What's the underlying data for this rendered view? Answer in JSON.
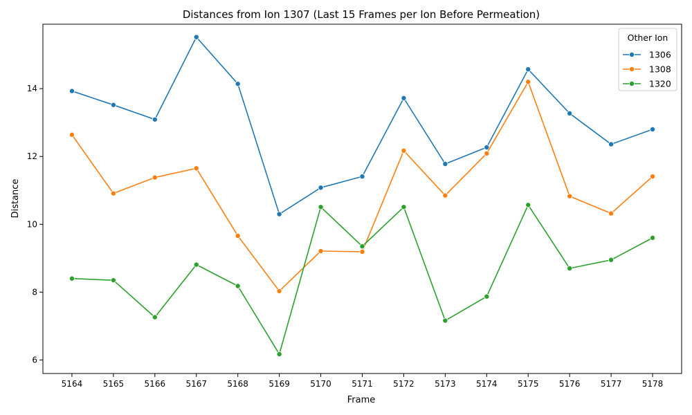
{
  "chart_data": {
    "type": "line",
    "title": "Distances from Ion 1307 (Last 15 Frames per Ion Before Permeation)",
    "xlabel": "Frame",
    "ylabel": "Distance",
    "categories": [
      "5164",
      "5165",
      "5166",
      "5167",
      "5168",
      "5169",
      "5170",
      "5171",
      "5172",
      "5173",
      "5174",
      "5175",
      "5176",
      "5177",
      "5178"
    ],
    "ylim": [
      5.6,
      15.9
    ],
    "yticks": [
      6,
      8,
      10,
      12,
      14
    ],
    "legend": {
      "title": "Other Ion",
      "position": "top-right"
    },
    "grid": false,
    "series": [
      {
        "name": "1306",
        "color": "#1f77b4",
        "values": [
          13.93,
          13.52,
          13.09,
          15.52,
          14.14,
          10.3,
          11.08,
          11.41,
          13.72,
          11.78,
          12.27,
          14.57,
          13.27,
          12.36,
          12.8
        ]
      },
      {
        "name": "1308",
        "color": "#ff7f0e",
        "values": [
          12.64,
          10.91,
          11.38,
          11.65,
          9.66,
          8.03,
          9.21,
          9.19,
          12.17,
          10.85,
          12.09,
          14.2,
          10.83,
          10.32,
          11.41
        ]
      },
      {
        "name": "1320",
        "color": "#2ca02c",
        "values": [
          8.4,
          8.35,
          7.26,
          8.81,
          8.18,
          6.17,
          10.51,
          9.35,
          10.51,
          7.16,
          7.87,
          10.57,
          8.7,
          8.95,
          9.6
        ]
      }
    ]
  }
}
